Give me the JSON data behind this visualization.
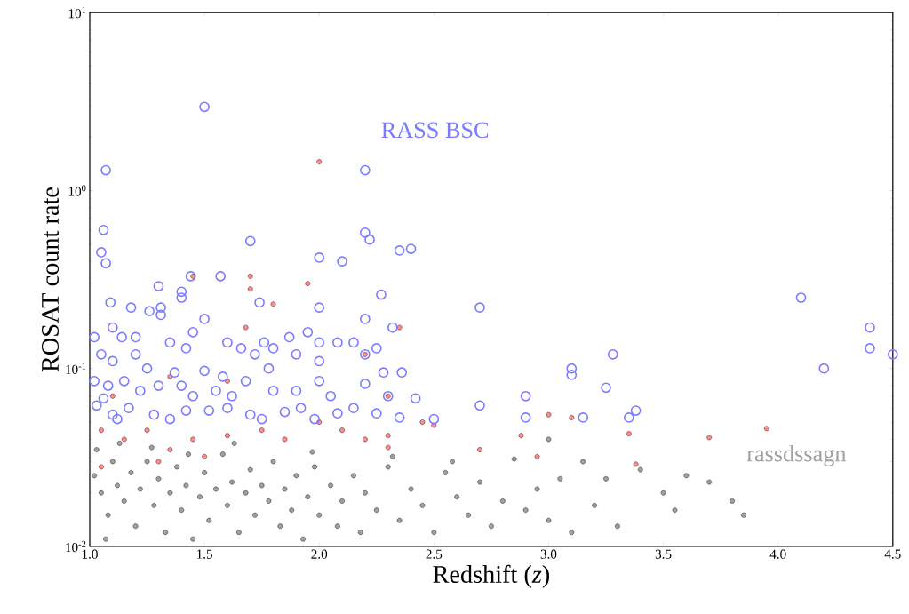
{
  "chart_data": {
    "type": "scatter",
    "xlabel": "Redshift (*z*)",
    "ylabel": "ROSAT count rate",
    "log": "y",
    "legend": false,
    "grid": false,
    "xlim": [
      1.0,
      4.5
    ],
    "ylim": [
      0.01,
      10
    ],
    "xticks": [
      {
        "value": 1.0,
        "label": "1.0"
      },
      {
        "value": 1.5,
        "label": "1.5"
      },
      {
        "value": 2.0,
        "label": "2.0"
      },
      {
        "value": 2.5,
        "label": "2.5"
      },
      {
        "value": 3.0,
        "label": "3.0"
      },
      {
        "value": 3.5,
        "label": "3.5"
      },
      {
        "value": 4.0,
        "label": "4.0"
      },
      {
        "value": 4.5,
        "label": "4.5"
      }
    ],
    "yticks": [
      {
        "value": 0.01,
        "label": "10$^{-2}$"
      },
      {
        "value": 0.1,
        "label": "10$^{-1}$"
      },
      {
        "value": 1,
        "label": "10$^{0}$"
      },
      {
        "value": 10,
        "label": "10$^{1}$"
      }
    ],
    "series": [
      {
        "name": "rassdssagn",
        "color": "#a0a0a0",
        "x": [
          1.02,
          1.05,
          1.08,
          1.1,
          1.12,
          1.15,
          1.18,
          1.2,
          1.22,
          1.25,
          1.28,
          1.3,
          1.33,
          1.35,
          1.38,
          1.4,
          1.42,
          1.45,
          1.48,
          1.5,
          1.52,
          1.55,
          1.58,
          1.6,
          1.62,
          1.65,
          1.68,
          1.7,
          1.72,
          1.75,
          1.78,
          1.8,
          1.83,
          1.85,
          1.88,
          1.9,
          1.93,
          1.95,
          1.98,
          2.0,
          2.05,
          2.08,
          2.1,
          2.15,
          2.18,
          2.2,
          2.25,
          2.3,
          2.35,
          2.4,
          2.45,
          2.5,
          2.55,
          2.6,
          2.65,
          2.7,
          2.75,
          2.8,
          2.85,
          2.9,
          2.95,
          3.0,
          3.05,
          3.1,
          3.15,
          3.2,
          3.25,
          3.3,
          3.4,
          3.5,
          3.55,
          3.6,
          3.7,
          3.8,
          3.85,
          1.03,
          1.07,
          1.13,
          1.27,
          1.43,
          1.63,
          1.97,
          2.32,
          3.0,
          2.58
        ],
        "values": [
          0.025,
          0.02,
          0.015,
          0.03,
          0.022,
          0.018,
          0.026,
          0.013,
          0.021,
          0.03,
          0.017,
          0.024,
          0.012,
          0.02,
          0.028,
          0.016,
          0.022,
          0.011,
          0.019,
          0.026,
          0.014,
          0.021,
          0.033,
          0.017,
          0.023,
          0.012,
          0.02,
          0.027,
          0.015,
          0.022,
          0.018,
          0.03,
          0.013,
          0.021,
          0.016,
          0.025,
          0.011,
          0.019,
          0.028,
          0.015,
          0.022,
          0.013,
          0.018,
          0.025,
          0.012,
          0.02,
          0.016,
          0.028,
          0.014,
          0.021,
          0.017,
          0.012,
          0.026,
          0.019,
          0.015,
          0.023,
          0.013,
          0.018,
          0.031,
          0.016,
          0.021,
          0.014,
          0.024,
          0.012,
          0.03,
          0.017,
          0.024,
          0.013,
          0.027,
          0.02,
          0.016,
          0.025,
          0.023,
          0.018,
          0.015,
          0.035,
          0.011,
          0.038,
          0.036,
          0.033,
          0.038,
          0.034,
          0.032,
          0.04,
          0.03
        ]
      },
      {
        "color": "#ff8c8c",
        "x": [
          2.0,
          1.7,
          1.7,
          1.95,
          1.8,
          1.45,
          1.68,
          2.35,
          1.35,
          1.6,
          1.1,
          2.2,
          2.3,
          2.5,
          2.7,
          2.88,
          3.0,
          3.1,
          3.35,
          3.7,
          3.95,
          2.95,
          3.38,
          1.05,
          1.15,
          1.25,
          1.35,
          1.45,
          1.6,
          1.75,
          1.85,
          2.0,
          2.1,
          2.2,
          1.3,
          1.5,
          2.3,
          2.45,
          2.3,
          1.05
        ],
        "values": [
          1.45,
          0.33,
          0.28,
          0.3,
          0.23,
          0.33,
          0.17,
          0.17,
          0.09,
          0.085,
          0.07,
          0.12,
          0.07,
          0.048,
          0.035,
          0.042,
          0.055,
          0.053,
          0.043,
          0.041,
          0.046,
          0.032,
          0.029,
          0.045,
          0.04,
          0.045,
          0.035,
          0.04,
          0.042,
          0.045,
          0.04,
          0.05,
          0.045,
          0.04,
          0.03,
          0.032,
          0.042,
          0.05,
          0.036,
          0.028
        ]
      },
      {
        "name": "RASS BSC",
        "color": "#7b7bff",
        "marker": "circle",
        "x": [
          1.5,
          1.07,
          2.2,
          1.06,
          2.2,
          2.22,
          1.05,
          1.07,
          2.35,
          2.4,
          1.7,
          2.0,
          2.1,
          1.44,
          1.57,
          1.3,
          1.4,
          1.4,
          1.09,
          1.74,
          2.27,
          2.7,
          4.1,
          1.18,
          1.26,
          1.31,
          1.31,
          1.5,
          2.0,
          1.95,
          2.2,
          4.4,
          4.4,
          4.5,
          1.02,
          1.1,
          1.14,
          1.2,
          1.35,
          1.42,
          1.45,
          1.6,
          1.66,
          1.76,
          1.8,
          1.87,
          2.0,
          2.08,
          2.15,
          2.25,
          2.32,
          3.28,
          4.2,
          3.1,
          3.1,
          1.05,
          1.1,
          1.2,
          1.25,
          1.37,
          1.5,
          1.58,
          1.72,
          1.78,
          1.9,
          2.0,
          2.2,
          2.28,
          2.36,
          3.25,
          1.02,
          1.08,
          1.15,
          1.22,
          1.3,
          1.4,
          1.45,
          1.55,
          1.62,
          1.68,
          1.8,
          1.9,
          2.0,
          2.05,
          2.2,
          2.3,
          2.42,
          2.9,
          1.03,
          1.1,
          1.17,
          1.28,
          1.35,
          1.42,
          1.52,
          1.6,
          1.7,
          1.75,
          1.85,
          1.92,
          1.98,
          2.08,
          2.15,
          2.25,
          2.35,
          2.5,
          2.7,
          2.9,
          3.15,
          3.35,
          3.38,
          1.06,
          1.12
        ],
        "values": [
          2.95,
          1.3,
          1.3,
          0.6,
          0.58,
          0.53,
          0.45,
          0.39,
          0.46,
          0.47,
          0.52,
          0.42,
          0.4,
          0.33,
          0.33,
          0.29,
          0.27,
          0.25,
          0.235,
          0.235,
          0.26,
          0.22,
          0.25,
          0.22,
          0.21,
          0.22,
          0.2,
          0.19,
          0.22,
          0.16,
          0.19,
          0.17,
          0.13,
          0.12,
          0.15,
          0.17,
          0.15,
          0.15,
          0.14,
          0.13,
          0.16,
          0.14,
          0.13,
          0.14,
          0.13,
          0.15,
          0.14,
          0.14,
          0.14,
          0.13,
          0.17,
          0.12,
          0.1,
          0.1,
          0.092,
          0.12,
          0.11,
          0.12,
          0.1,
          0.095,
          0.097,
          0.09,
          0.12,
          0.1,
          0.12,
          0.11,
          0.12,
          0.095,
          0.095,
          0.078,
          0.085,
          0.08,
          0.085,
          0.075,
          0.08,
          0.08,
          0.07,
          0.075,
          0.07,
          0.085,
          0.075,
          0.075,
          0.085,
          0.07,
          0.082,
          0.07,
          0.068,
          0.07,
          0.062,
          0.055,
          0.06,
          0.055,
          0.052,
          0.058,
          0.058,
          0.06,
          0.055,
          0.052,
          0.057,
          0.06,
          0.052,
          0.056,
          0.06,
          0.056,
          0.053,
          0.052,
          0.062,
          0.053,
          0.053,
          0.053,
          0.058,
          0.068,
          0.052
        ]
      }
    ]
  }
}
